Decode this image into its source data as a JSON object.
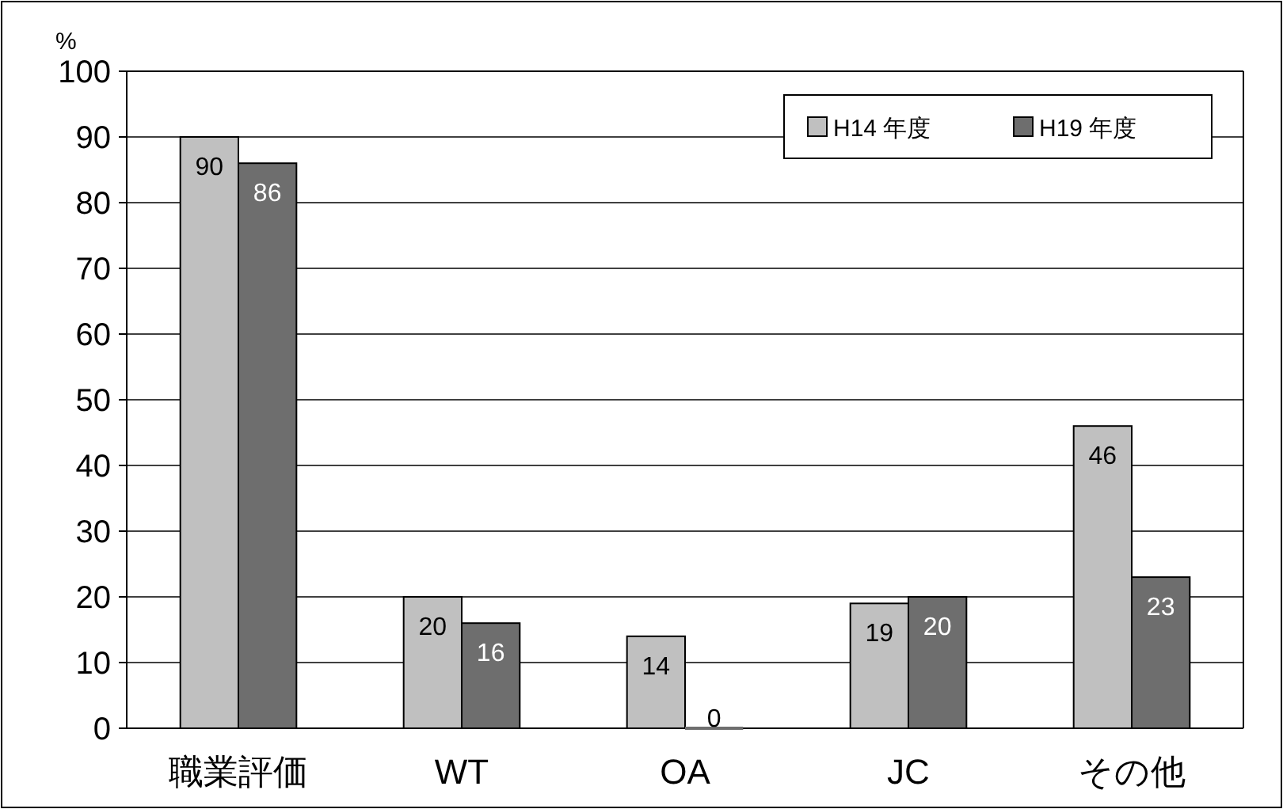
{
  "chart_data": {
    "type": "bar",
    "ylabel": "%",
    "categories": [
      "職業評価",
      "WT",
      "OA",
      "JC",
      "その他"
    ],
    "series": [
      {
        "name": "H14 年度",
        "color": "#c0c0c0",
        "values": [
          90,
          20,
          14,
          19,
          46
        ]
      },
      {
        "name": "H19 年度",
        "color": "#6e6e6e",
        "values": [
          86,
          16,
          0,
          20,
          23
        ]
      }
    ],
    "ylim": [
      0,
      100
    ],
    "yticks": [
      0,
      10,
      20,
      30,
      40,
      50,
      60,
      70,
      80,
      90,
      100
    ],
    "grid": "y",
    "legend": "top right",
    "data_labels": true
  }
}
